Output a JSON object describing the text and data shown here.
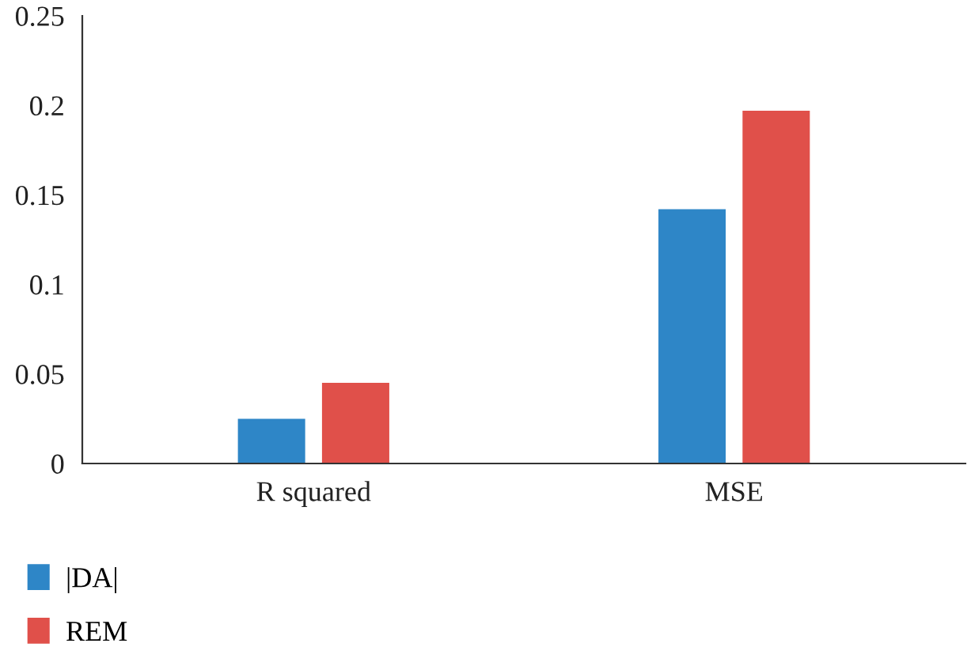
{
  "chart_data": {
    "type": "bar",
    "categories": [
      "R squared",
      "MSE"
    ],
    "series": [
      {
        "name": "|DA|",
        "color": "#2e86c7",
        "values": [
          0.025,
          0.142
        ]
      },
      {
        "name": "REM",
        "color": "#e0504a",
        "values": [
          0.045,
          0.197
        ]
      }
    ],
    "ylim": [
      0,
      0.25
    ],
    "yticks": [
      0,
      0.05,
      0.1,
      0.15,
      0.2,
      0.25
    ],
    "grid": false,
    "legend": "bottom left"
  }
}
